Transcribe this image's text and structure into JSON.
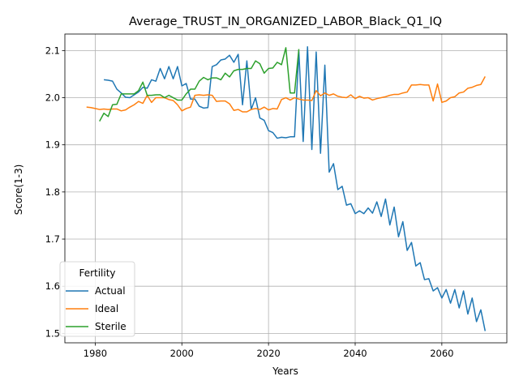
{
  "chart_data": {
    "type": "line",
    "title": "Average_TRUST_IN_ORGANIZED_LABOR_Black_Q1_IQ",
    "xlabel": "Years",
    "ylabel": "Score(1-3)",
    "xlim": [
      1973,
      2075
    ],
    "ylim": [
      1.48,
      2.135
    ],
    "xticks": [
      1980,
      2000,
      2020,
      2040,
      2060
    ],
    "yticks": [
      1.5,
      1.6,
      1.7,
      1.8,
      1.9,
      2.0,
      2.1
    ],
    "xtick_labels": [
      "1980",
      "2000",
      "2020",
      "2040",
      "2060"
    ],
    "ytick_labels": [
      "1.5",
      "1.6",
      "1.7",
      "1.8",
      "1.9",
      "2.0",
      "2.1"
    ],
    "grid": true,
    "legend": {
      "title": "Fertility",
      "placement": "lower-left"
    },
    "series": [
      {
        "name": "Actual",
        "color": "#1f77b4",
        "x": [
          1982,
          1983,
          1984,
          1985,
          1986,
          1987,
          1988,
          1989,
          1990,
          1991,
          1992,
          1993,
          1994,
          1995,
          1996,
          1997,
          1998,
          1999,
          2000,
          2001,
          2002,
          2003,
          2004,
          2005,
          2006,
          2007,
          2008,
          2009,
          2010,
          2011,
          2012,
          2013,
          2014,
          2015,
          2016,
          2017,
          2018,
          2019,
          2020,
          2021,
          2022,
          2023,
          2024,
          2025,
          2026,
          2027,
          2028,
          2029,
          2030,
          2031,
          2032,
          2033,
          2034,
          2035,
          2036,
          2037,
          2038,
          2039,
          2040,
          2041,
          2042,
          2043,
          2044,
          2045,
          2046,
          2047,
          2048,
          2049,
          2050,
          2051,
          2052,
          2053,
          2054,
          2055,
          2056,
          2057,
          2058,
          2059,
          2060,
          2061,
          2062,
          2063,
          2064,
          2065,
          2066,
          2067,
          2068,
          2069,
          2070
        ],
        "values": [
          2.038,
          2.037,
          2.035,
          2.018,
          2.01,
          2.001,
          2.0,
          2.006,
          2.012,
          2.022,
          2.02,
          2.038,
          2.035,
          2.062,
          2.04,
          2.066,
          2.04,
          2.066,
          2.025,
          2.03,
          1.997,
          1.997,
          1.982,
          1.978,
          1.979,
          2.066,
          2.07,
          2.08,
          2.082,
          2.09,
          2.075,
          2.092,
          1.985,
          2.078,
          1.975,
          2.0,
          1.957,
          1.952,
          1.93,
          1.926,
          1.914,
          1.916,
          1.915,
          1.917,
          1.917,
          2.098,
          1.907,
          2.108,
          1.89,
          2.097,
          1.882,
          2.069,
          1.842,
          1.86,
          1.805,
          1.812,
          1.772,
          1.775,
          1.754,
          1.76,
          1.754,
          1.766,
          1.755,
          1.779,
          1.748,
          1.785,
          1.73,
          1.768,
          1.705,
          1.737,
          1.676,
          1.693,
          1.643,
          1.65,
          1.614,
          1.616,
          1.59,
          1.597,
          1.575,
          1.593,
          1.564,
          1.593,
          1.554,
          1.59,
          1.541,
          1.575,
          1.525,
          1.55,
          1.505
        ]
      },
      {
        "name": "Ideal",
        "color": "#ff7f0e",
        "x": [
          1978,
          1979,
          1980,
          1981,
          1982,
          1983,
          1984,
          1985,
          1986,
          1987,
          1988,
          1989,
          1990,
          1991,
          1992,
          1993,
          1994,
          1995,
          1996,
          1997,
          1998,
          1999,
          2000,
          2001,
          2002,
          2003,
          2004,
          2005,
          2006,
          2007,
          2008,
          2009,
          2010,
          2011,
          2012,
          2013,
          2014,
          2015,
          2016,
          2017,
          2018,
          2019,
          2020,
          2021,
          2022,
          2023,
          2024,
          2025,
          2026,
          2027,
          2028,
          2029,
          2030,
          2031,
          2032,
          2033,
          2034,
          2035,
          2036,
          2037,
          2038,
          2039,
          2040,
          2041,
          2042,
          2043,
          2044,
          2045,
          2046,
          2047,
          2048,
          2049,
          2050,
          2051,
          2052,
          2053,
          2054,
          2055,
          2056,
          2057,
          2058,
          2059,
          2060,
          2061,
          2062,
          2063,
          2064,
          2065,
          2066,
          2067,
          2068,
          2069,
          2070
        ],
        "values": [
          1.98,
          1.979,
          1.977,
          1.975,
          1.976,
          1.975,
          1.976,
          1.976,
          1.972,
          1.974,
          1.98,
          1.985,
          1.992,
          1.988,
          2.005,
          1.99,
          2.0,
          2.0,
          2.0,
          1.996,
          1.994,
          1.985,
          1.972,
          1.977,
          1.98,
          2.005,
          2.006,
          2.005,
          2.006,
          2.005,
          1.992,
          1.993,
          1.993,
          1.987,
          1.973,
          1.975,
          1.97,
          1.97,
          1.975,
          1.977,
          1.975,
          1.98,
          1.974,
          1.977,
          1.976,
          1.996,
          2.0,
          1.995,
          2.0,
          1.997,
          1.995,
          1.995,
          1.994,
          2.015,
          2.004,
          2.01,
          2.005,
          2.008,
          2.003,
          2.001,
          2.0,
          2.006,
          1.998,
          2.003,
          1.999,
          2.0,
          1.995,
          1.998,
          2.0,
          2.002,
          2.005,
          2.007,
          2.007,
          2.01,
          2.012,
          2.027,
          2.027,
          2.028,
          2.027,
          2.027,
          1.993,
          2.029,
          1.99,
          1.993,
          2.0,
          2.002,
          2.01,
          2.012,
          2.02,
          2.022,
          2.026,
          2.028,
          2.045
        ]
      },
      {
        "name": "Sterile",
        "color": "#2ca02c",
        "x": [
          1981,
          1982,
          1983,
          1984,
          1985,
          1986,
          1987,
          1988,
          1989,
          1990,
          1991,
          1992,
          1993,
          1994,
          1995,
          1996,
          1997,
          1998,
          1999,
          2000,
          2001,
          2002,
          2003,
          2004,
          2005,
          2006,
          2007,
          2008,
          2009,
          2010,
          2011,
          2012,
          2013,
          2014,
          2015,
          2016,
          2017,
          2018,
          2019,
          2020,
          2021,
          2022,
          2023,
          2024,
          2025,
          2026,
          2027
        ],
        "values": [
          1.95,
          1.967,
          1.96,
          1.985,
          1.986,
          2.008,
          2.008,
          2.008,
          2.008,
          2.015,
          2.033,
          2.005,
          2.005,
          2.006,
          2.006,
          2.0,
          2.005,
          2.0,
          1.995,
          1.995,
          2.008,
          2.018,
          2.018,
          2.035,
          2.043,
          2.038,
          2.042,
          2.042,
          2.038,
          2.052,
          2.044,
          2.057,
          2.06,
          2.06,
          2.062,
          2.062,
          2.078,
          2.072,
          2.052,
          2.062,
          2.063,
          2.075,
          2.07,
          2.106,
          2.01,
          2.01,
          2.103
        ]
      }
    ]
  }
}
